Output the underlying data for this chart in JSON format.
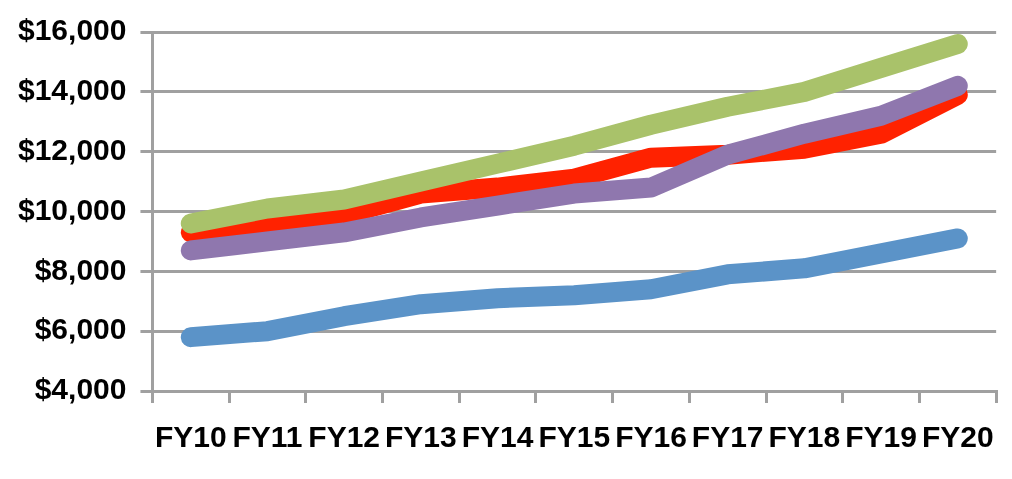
{
  "chart_data": {
    "type": "line",
    "categories": [
      "FY10",
      "FY11",
      "FY12",
      "FY13",
      "FY14",
      "FY15",
      "FY16",
      "FY17",
      "FY18",
      "FY19",
      "FY20"
    ],
    "series": [
      {
        "color": "#8f77ae",
        "values": [
          8700,
          9000,
          9300,
          9800,
          10200,
          10600,
          10800,
          11900,
          12600,
          13200,
          14200
        ]
      },
      {
        "color": "#a9c26a",
        "values": [
          9600,
          10100,
          10400,
          11000,
          11600,
          12200,
          12900,
          13500,
          14000,
          14800,
          15600
        ]
      },
      {
        "color": "#ff2200",
        "values": [
          9300,
          9600,
          9900,
          10600,
          10800,
          11100,
          11800,
          11900,
          12100,
          12600,
          13900
        ]
      },
      {
        "color": "#5b93c8",
        "values": [
          5800,
          6000,
          6500,
          6900,
          7100,
          7200,
          7400,
          7900,
          8100,
          8600,
          9100
        ]
      }
    ],
    "ylim": [
      4000,
      16000
    ],
    "yticks": [
      {
        "value": 4000,
        "label": "$4,000"
      },
      {
        "value": 6000,
        "label": "$6,000"
      },
      {
        "value": 8000,
        "label": "$8,000"
      },
      {
        "value": 10000,
        "label": "$10,000"
      },
      {
        "value": 12000,
        "label": "$12,000"
      },
      {
        "value": 14000,
        "label": "$14,000"
      },
      {
        "value": 16000,
        "label": "$16,000"
      }
    ],
    "grid": "y",
    "legend": false
  }
}
